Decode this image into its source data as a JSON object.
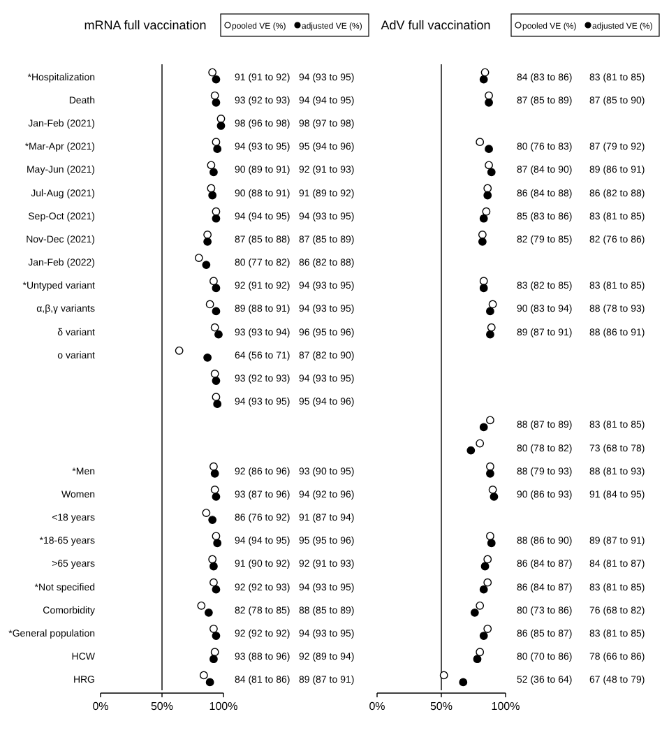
{
  "chart_data": [
    {
      "type": "scatter",
      "orientation": "horizontal",
      "title": "mRNA full vaccination",
      "legend": "top",
      "marker": "circle",
      "xlim": [
        0,
        100
      ],
      "xticks": [
        {
          "value": 0,
          "label": "0%"
        },
        {
          "value": 50,
          "label": "50%"
        },
        {
          "value": 100,
          "label": "100%"
        }
      ],
      "ref_lines": [
        {
          "axis": "x",
          "value": 50,
          "color": "#000000"
        }
      ],
      "categories": [
        "*Hospitalization",
        "Death",
        "Jan-Feb (2021)",
        "*Mar-Apr (2021)",
        "May-Jun (2021)",
        "Jul-Aug (2021)",
        "Sep-Oct (2021)",
        "Nov-Dec (2021)",
        "Jan-Feb (2022)",
        "*Untyped variant",
        "α,β,γ variants",
        "δ variant",
        "ο variant",
        null,
        null,
        null,
        null,
        "*Men",
        "Women",
        "<18 years",
        "*18-65 years",
        ">65 years",
        "*Not specified",
        "Comorbidity",
        "*General population",
        "HCW",
        "HRG"
      ],
      "series": [
        {
          "name": "pooled VE (%)",
          "color": "#ffffff",
          "values": [
            91,
            93,
            98,
            94,
            90,
            90,
            94,
            87,
            80,
            92,
            89,
            93,
            64,
            93,
            94,
            null,
            null,
            92,
            93,
            86,
            94,
            91,
            92,
            82,
            92,
            93,
            84
          ],
          "value_labels": [
            "91 (91 to 92)",
            "93 (92 to 93)",
            "98 (96 to 98)",
            "94 (93 to 95)",
            "90 (89 to 91)",
            "90 (88 to 91)",
            "94 (94 to 95)",
            "87 (85 to 88)",
            "80 (77 to 82)",
            "92 (91 to 92)",
            "89 (88 to 91)",
            "93 (93 to 94)",
            "64 (56 to 71)",
            "93 (92 to 93)",
            "94 (93 to 95)",
            null,
            null,
            "92 (86 to 96)",
            "93 (87 to 96)",
            "86 (76 to 92)",
            "94 (94 to 95)",
            "91 (90 to 92)",
            "92 (92 to 93)",
            "82 (78 to 85)",
            "92 (92 to 92)",
            "93 (88 to 96)",
            "84 (81 to 86)"
          ]
        },
        {
          "name": "adjusted VE (%)",
          "color": "#000000",
          "values": [
            94,
            94,
            98,
            95,
            92,
            91,
            94,
            87,
            86,
            94,
            94,
            96,
            87,
            94,
            95,
            null,
            null,
            93,
            94,
            91,
            95,
            92,
            94,
            88,
            94,
            92,
            89
          ],
          "value_labels": [
            "94 (93 to 95)",
            "94 (94 to 95)",
            "98 (97 to 98)",
            "95 (94 to 96)",
            "92 (91 to 93)",
            "91 (89 to 92)",
            "94 (93 to 95)",
            "87 (85 to 89)",
            "86 (82 to 88)",
            "94 (93 to 95)",
            "94 (93 to 95)",
            "96 (95 to 96)",
            "87 (82 to 90)",
            "94 (93 to 95)",
            "95 (94 to 96)",
            null,
            null,
            "93 (90 to 95)",
            "94 (92 to 96)",
            "91 (87 to 94)",
            "95 (95 to 96)",
            "92 (91 to 93)",
            "94 (93 to 95)",
            "88 (85 to 89)",
            "94 (93 to 95)",
            "92 (89 to 94)",
            "89 (87 to 91)"
          ]
        }
      ]
    },
    {
      "type": "scatter",
      "orientation": "horizontal",
      "title": "AdV full vaccination",
      "legend": "top",
      "marker": "circle",
      "xlim": [
        0,
        100
      ],
      "xticks": [
        {
          "value": 0,
          "label": "0%"
        },
        {
          "value": 50,
          "label": "50%"
        },
        {
          "value": 100,
          "label": "100%"
        }
      ],
      "ref_lines": [
        {
          "axis": "x",
          "value": 50,
          "color": "#000000"
        }
      ],
      "categories": [
        null,
        null,
        null,
        null,
        null,
        null,
        null,
        null,
        null,
        null,
        null,
        null,
        null,
        null,
        null,
        null,
        null,
        null,
        null,
        null,
        null,
        null,
        null,
        null,
        null,
        null,
        null
      ],
      "series": [
        {
          "name": "pooled VE (%)",
          "color": "#ffffff",
          "values": [
            84,
            87,
            null,
            80,
            87,
            86,
            85,
            82,
            null,
            83,
            90,
            89,
            null,
            null,
            null,
            88,
            80,
            88,
            90,
            null,
            88,
            86,
            86,
            80,
            86,
            80,
            52
          ],
          "value_labels": [
            "84 (83 to 86)",
            "87 (85 to 89)",
            null,
            "80 (76 to 83)",
            "87 (84 to 90)",
            "86 (84 to 88)",
            "85 (83 to 86)",
            "82 (79 to 85)",
            null,
            "83 (82 to 85)",
            "90 (83 to 94)",
            "89 (87 to 91)",
            null,
            null,
            null,
            "88 (87 to 89)",
            "80 (78 to 82)",
            "88 (79 to 93)",
            "90 (86 to 93)",
            null,
            "88 (86 to 90)",
            "86 (84 to 87)",
            "86 (84 to 87)",
            "80 (73 to 86)",
            "86 (85 to 87)",
            "80 (70 to 86)",
            "52 (36 to 64)"
          ]
        },
        {
          "name": "adjusted VE (%)",
          "color": "#000000",
          "values": [
            83,
            87,
            null,
            87,
            89,
            86,
            83,
            82,
            null,
            83,
            88,
            88,
            null,
            null,
            null,
            83,
            73,
            88,
            91,
            null,
            89,
            84,
            83,
            76,
            83,
            78,
            67
          ],
          "value_labels": [
            "83 (81 to 85)",
            "87 (85 to 90)",
            null,
            "87 (79 to 92)",
            "89 (86 to 91)",
            "86 (82 to 88)",
            "83 (81 to 85)",
            "82 (76 to 86)",
            null,
            "83 (81 to 85)",
            "88 (78 to 93)",
            "88 (86 to 91)",
            null,
            null,
            null,
            "83 (81 to 85)",
            "73 (68 to 78)",
            "88 (81 to 93)",
            "91 (84 to 95)",
            null,
            "89 (87 to 91)",
            "84 (81 to 87)",
            "83 (81 to 85)",
            "76 (68 to 82)",
            "83 (81 to 85)",
            "78 (66 to 86)",
            "67 (48 to 79)"
          ]
        }
      ]
    }
  ]
}
